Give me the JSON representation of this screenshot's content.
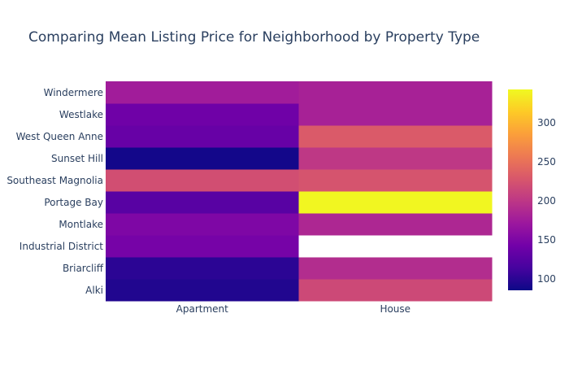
{
  "chart_data": {
    "type": "heatmap",
    "title": "Comparing Mean Listing Price for Neighborhood by Property Type",
    "xlabel": "",
    "ylabel": "",
    "x_categories": [
      "Apartment",
      "House"
    ],
    "y_categories": [
      "Alki",
      "Briarcliff",
      "Industrial District",
      "Montlake",
      "Portage Bay",
      "Southeast Magnolia",
      "Sunset Hill",
      "West Queen Anne",
      "Westlake",
      "Windermere"
    ],
    "z": [
      [
        95,
        215
      ],
      [
        100,
        190
      ],
      [
        145,
        null
      ],
      [
        150,
        185
      ],
      [
        125,
        340
      ],
      [
        220,
        225
      ],
      [
        88,
        200
      ],
      [
        135,
        230
      ],
      [
        140,
        180
      ],
      [
        175,
        180
      ]
    ],
    "zmin": 85,
    "zmax": 342,
    "colorscale": "Plasma",
    "colorbar_ticks": [
      100,
      150,
      200,
      250,
      300
    ],
    "colorbar_tick_labels": [
      "100",
      "150",
      "200",
      "250",
      "300"
    ],
    "grid": false,
    "legend": "colorbar-right",
    "colors": {
      "title": "#2a3f5f",
      "tick_text": "#2a3f5f",
      "missing_cell": "#ffffff"
    }
  }
}
